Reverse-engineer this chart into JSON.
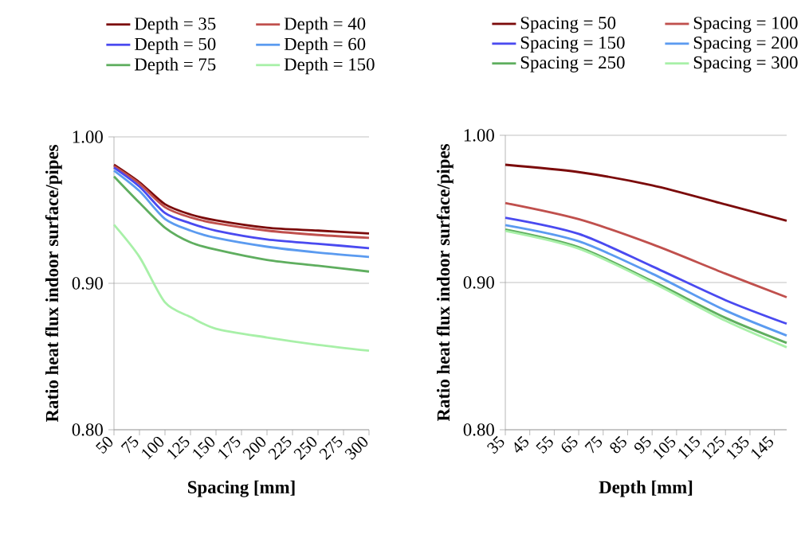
{
  "chart_data": [
    {
      "type": "line",
      "xlabel": "Spacing [mm]",
      "ylabel": "Ratio heat flux indoor surface/pipes",
      "x": [
        50,
        75,
        100,
        125,
        150,
        200,
        250,
        300
      ],
      "xlim": [
        50,
        300
      ],
      "xticks": [
        50,
        75,
        100,
        125,
        150,
        175,
        200,
        225,
        250,
        275,
        300
      ],
      "ylim": [
        0.8,
        1.0
      ],
      "yticks": [
        {
          "value": 0.8,
          "label": "0.80"
        },
        {
          "value": 0.9,
          "label": "0.90"
        },
        {
          "value": 1.0,
          "label": "1.00"
        }
      ],
      "grid": "y",
      "legend": "top",
      "series": [
        {
          "name": "Depth = 35",
          "color": "#7b0a0a",
          "values": [
            0.981,
            0.969,
            0.954,
            0.947,
            0.943,
            0.938,
            0.936,
            0.934
          ]
        },
        {
          "name": "Depth = 40",
          "color": "#c0504d",
          "values": [
            0.98,
            0.968,
            0.952,
            0.945,
            0.941,
            0.936,
            0.933,
            0.931
          ]
        },
        {
          "name": "Depth = 50",
          "color": "#4a4af0",
          "values": [
            0.979,
            0.966,
            0.948,
            0.941,
            0.936,
            0.93,
            0.927,
            0.924
          ]
        },
        {
          "name": "Depth = 60",
          "color": "#5b9bf0",
          "values": [
            0.977,
            0.963,
            0.944,
            0.936,
            0.931,
            0.925,
            0.921,
            0.918
          ]
        },
        {
          "name": "Depth = 75",
          "color": "#5fae5f",
          "values": [
            0.973,
            0.955,
            0.938,
            0.928,
            0.923,
            0.916,
            0.912,
            0.908
          ]
        },
        {
          "name": "Depth = 150",
          "color": "#a8f0a8",
          "values": [
            0.94,
            0.918,
            0.887,
            0.877,
            0.869,
            0.863,
            0.858,
            0.854
          ]
        }
      ]
    },
    {
      "type": "line",
      "xlabel": "Depth [mm]",
      "ylabel": "Ratio heat flux indoor surface/pipes",
      "x": [
        35,
        65,
        95,
        125,
        150
      ],
      "xlim": [
        35,
        150
      ],
      "xticks": [
        35,
        45,
        55,
        65,
        75,
        85,
        95,
        105,
        115,
        125,
        135,
        145
      ],
      "ylim": [
        0.8,
        1.0
      ],
      "yticks": [
        {
          "value": 0.8,
          "label": "0.80"
        },
        {
          "value": 0.9,
          "label": "0.90"
        },
        {
          "value": 1.0,
          "label": "1.00"
        }
      ],
      "grid": "y",
      "legend": "top",
      "series": [
        {
          "name": "Spacing = 50",
          "color": "#7b0a0a",
          "values": [
            0.98,
            0.975,
            0.966,
            0.953,
            0.942
          ]
        },
        {
          "name": "Spacing = 100",
          "color": "#c0504d",
          "values": [
            0.954,
            0.943,
            0.926,
            0.906,
            0.89
          ]
        },
        {
          "name": "Spacing = 150",
          "color": "#4a4af0",
          "values": [
            0.944,
            0.933,
            0.911,
            0.888,
            0.872
          ]
        },
        {
          "name": "Spacing = 200",
          "color": "#5b9bf0",
          "values": [
            0.939,
            0.928,
            0.906,
            0.881,
            0.864
          ]
        },
        {
          "name": "Spacing = 250",
          "color": "#5fae5f",
          "values": [
            0.936,
            0.924,
            0.901,
            0.876,
            0.859
          ]
        },
        {
          "name": "Spacing = 300",
          "color": "#a8f0a8",
          "values": [
            0.935,
            0.923,
            0.9,
            0.874,
            0.856
          ]
        }
      ]
    }
  ]
}
